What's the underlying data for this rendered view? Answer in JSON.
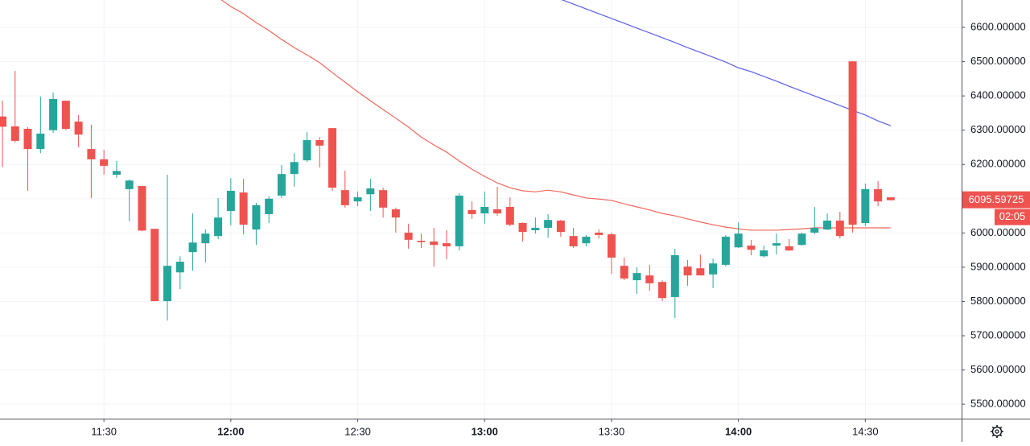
{
  "chart_data": {
    "type": "candlestick",
    "x": [
      "11:06",
      "11:09",
      "11:12",
      "11:15",
      "11:18",
      "11:21",
      "11:24",
      "11:27",
      "11:30",
      "11:33",
      "11:36",
      "11:39",
      "11:42",
      "11:45",
      "11:48",
      "11:51",
      "11:54",
      "11:57",
      "12:00",
      "12:03",
      "12:06",
      "12:09",
      "12:12",
      "12:15",
      "12:18",
      "12:21",
      "12:24",
      "12:27",
      "12:30",
      "12:33",
      "12:36",
      "12:39",
      "12:42",
      "12:45",
      "12:48",
      "12:51",
      "12:54",
      "12:57",
      "13:00",
      "13:03",
      "13:06",
      "13:09",
      "13:12",
      "13:15",
      "13:18",
      "13:21",
      "13:24",
      "13:27",
      "13:30",
      "13:33",
      "13:36",
      "13:39",
      "13:42",
      "13:45",
      "13:48",
      "13:51",
      "13:54",
      "13:57",
      "14:00",
      "14:03",
      "14:06",
      "14:09",
      "14:12",
      "14:15",
      "14:18",
      "14:21",
      "14:24",
      "14:27",
      "14:30",
      "14:33",
      "14:36"
    ],
    "open": [
      6340,
      6311,
      6304,
      6245,
      6300,
      6386,
      6325,
      6245,
      6215,
      6170,
      6128,
      6137,
      6012,
      5801,
      5885,
      5944,
      5970,
      5991,
      6064,
      6118,
      6010,
      6055,
      6109,
      6172,
      6212,
      6271,
      6306,
      6125,
      6092,
      6113,
      6125,
      6069,
      6001,
      5977,
      5975,
      5970,
      5961,
      6067,
      6057,
      6069,
      6076,
      6029,
      6008,
      6015,
      6036,
      5991,
      5970,
      6001,
      5996,
      5904,
      5862,
      5876,
      5857,
      5813,
      5902,
      5897,
      5879,
      5907,
      5958,
      5963,
      5932,
      5963,
      5961,
      5965,
      6001,
      6010,
      6036,
      6501,
      6029,
      6128,
      6104
    ],
    "high": [
      6386,
      6473,
      6309,
      6398,
      6410,
      6386,
      6344,
      6316,
      6243,
      6210,
      6156,
      6137,
      6012,
      6170,
      5932,
      6057,
      6010,
      6102,
      6160,
      6158,
      6088,
      6107,
      6198,
      6233,
      6295,
      6280,
      6306,
      6182,
      6121,
      6158,
      6132,
      6074,
      6027,
      5998,
      6015,
      6008,
      6116,
      6092,
      6121,
      6135,
      6104,
      6031,
      6045,
      6055,
      6038,
      6015,
      5994,
      6010,
      6001,
      5928,
      5900,
      5907,
      5862,
      5954,
      5921,
      5937,
      5925,
      5994,
      6031,
      5980,
      5963,
      5998,
      5982,
      6001,
      6076,
      6057,
      6062,
      6501,
      6144,
      6151,
      6104
    ],
    "low": [
      6193,
      6264,
      6123,
      6233,
      6292,
      6300,
      6250,
      6102,
      6170,
      6161,
      6034,
      6005,
      5801,
      5744,
      5836,
      5890,
      5914,
      5982,
      6022,
      5996,
      5965,
      6029,
      6102,
      6135,
      6207,
      6191,
      6123,
      6074,
      6078,
      6064,
      6045,
      6001,
      5954,
      5956,
      5902,
      5923,
      5949,
      6041,
      6027,
      6050,
      6020,
      5975,
      5998,
      5986,
      5989,
      5956,
      5961,
      5984,
      5881,
      5862,
      5822,
      5831,
      5801,
      5752,
      5846,
      5876,
      5839,
      5902,
      5956,
      5935,
      5928,
      5937,
      5947,
      5963,
      5996,
      6008,
      5984,
      6001,
      6020,
      6078,
      6095
    ],
    "close": [
      6310,
      6269,
      6245,
      6290,
      6391,
      6304,
      6287,
      6215,
      6196,
      6181,
      6153,
      6007,
      5801,
      5904,
      5916,
      5972,
      5998,
      6045,
      6123,
      6024,
      6081,
      6100,
      6172,
      6207,
      6271,
      6255,
      6132,
      6081,
      6104,
      6130,
      6074,
      6045,
      5980,
      5973,
      5965,
      5961,
      6109,
      6055,
      6076,
      6057,
      6024,
      6003,
      6015,
      6038,
      6003,
      5961,
      5989,
      5994,
      5928,
      5867,
      5883,
      5853,
      5810,
      5935,
      5876,
      5876,
      5911,
      5989,
      5998,
      5951,
      5949,
      5970,
      5949,
      5998,
      6015,
      6036,
      5991,
      6024,
      6128,
      6092,
      6095.59725
    ],
    "up_color": "#26a69a",
    "down_color": "#ef5350",
    "lines": [
      {
        "color": "#f0675a",
        "values": [
          null,
          null,
          null,
          null,
          null,
          null,
          null,
          null,
          null,
          null,
          null,
          null,
          null,
          null,
          null,
          null,
          null,
          6687,
          6661,
          6640,
          6614,
          6591,
          6565,
          6541,
          6520,
          6497,
          6468,
          6440,
          6412,
          6386,
          6360,
          6335,
          6309,
          6280,
          6257,
          6236,
          6210,
          6186,
          6165,
          6146,
          6132,
          6123,
          6120,
          6125,
          6120,
          6111,
          6102,
          6099,
          6095,
          6085,
          6076,
          6067,
          6057,
          6050,
          6041,
          6032,
          6024,
          6017,
          6012,
          6008,
          6008,
          6008,
          6010,
          6012,
          6015,
          6015,
          6015,
          6015,
          6015,
          6015,
          6015
        ]
      },
      {
        "color": "#5b5ee8",
        "values": [
          null,
          null,
          null,
          null,
          null,
          null,
          null,
          null,
          null,
          null,
          null,
          null,
          null,
          null,
          null,
          null,
          null,
          null,
          null,
          null,
          null,
          null,
          null,
          null,
          null,
          null,
          null,
          null,
          null,
          null,
          null,
          null,
          null,
          null,
          null,
          null,
          null,
          null,
          null,
          null,
          null,
          null,
          null,
          null,
          6682,
          6668,
          6654,
          6640,
          6626,
          6612,
          6598,
          6584,
          6570,
          6556,
          6541,
          6527,
          6513,
          6499,
          6482,
          6471,
          6457,
          6443,
          6428,
          6414,
          6400,
          6386,
          6372,
          6358,
          6344,
          6327,
          6313
        ]
      }
    ],
    "ylim": [
      5458,
      6680
    ],
    "yticks": [
      {
        "value": 5500,
        "label": "5500.00000"
      },
      {
        "value": 5600,
        "label": "5600.00000"
      },
      {
        "value": 5700,
        "label": "5700.00000"
      },
      {
        "value": 5800,
        "label": "5800.00000"
      },
      {
        "value": 5900,
        "label": "5900.00000"
      },
      {
        "value": 6000,
        "label": "6000.00000"
      },
      {
        "value": 6100,
        "label": "6100.00000"
      },
      {
        "value": 6200,
        "label": "6200.00000"
      },
      {
        "value": 6300,
        "label": "6300.00000"
      },
      {
        "value": 6400,
        "label": "6400.00000"
      },
      {
        "value": 6500,
        "label": "6500.00000"
      },
      {
        "value": 6600,
        "label": "6600.00000"
      }
    ],
    "xticks": [
      "11:30",
      "12:00",
      "12:30",
      "13:00",
      "13:30",
      "14:00",
      "14:30"
    ],
    "grid": true,
    "countdown": "02:05"
  }
}
